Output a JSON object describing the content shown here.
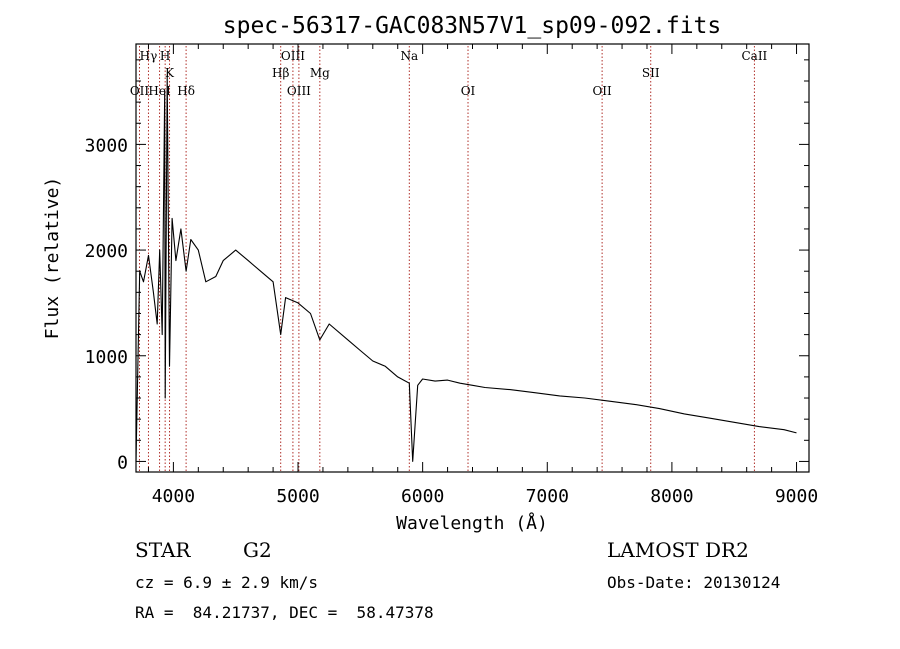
{
  "chart_data": {
    "type": "line",
    "title": "spec-56317-GAC083N57V1_sp09-092.fits",
    "xlabel": "Wavelength (Å)",
    "ylabel": "Flux (relative)",
    "xlim": [
      3700,
      9100
    ],
    "ylim": [
      -100,
      3950
    ],
    "x_ticks": [
      4000,
      5000,
      6000,
      7000,
      8000,
      9000
    ],
    "y_ticks": [
      0,
      1000,
      2000,
      3000
    ],
    "grid": false,
    "line_color": "#000000",
    "marker_color": "#b0302a",
    "lines": [
      {
        "label": "Hγ",
        "x": 3800,
        "row": 0
      },
      {
        "label": "H",
        "x": 3934,
        "row": 0
      },
      {
        "label": "OII",
        "x": 3728,
        "row": 2
      },
      {
        "label": "HeI",
        "x": 3889,
        "row": 2
      },
      {
        "label": "K",
        "x": 3969,
        "row": 1
      },
      {
        "label": "Hδ",
        "x": 4102,
        "row": 2
      },
      {
        "label": "OIII",
        "x": 4959,
        "row": 0
      },
      {
        "label": "Hβ",
        "x": 4861,
        "row": 1
      },
      {
        "label": "OIII",
        "x": 5007,
        "row": 2
      },
      {
        "label": "Mg",
        "x": 5175,
        "row": 1
      },
      {
        "label": "Na",
        "x": 5893,
        "row": 0
      },
      {
        "label": "OI",
        "x": 6364,
        "row": 2
      },
      {
        "label": "OII",
        "x": 7440,
        "row": 2
      },
      {
        "label": "SII",
        "x": 7830,
        "row": 1
      },
      {
        "label": "CaII",
        "x": 8662,
        "row": 0
      }
    ],
    "series": [
      {
        "x": [
          3700,
          3730,
          3760,
          3800,
          3840,
          3870,
          3890,
          3910,
          3930,
          3934,
          3950,
          3969,
          3990,
          4020,
          4060,
          4102,
          4140,
          4200,
          4260,
          4340,
          4400,
          4500,
          4600,
          4700,
          4800,
          4861,
          4900,
          5000,
          5100,
          5175,
          5250,
          5400,
          5500,
          5600,
          5700,
          5800,
          5893,
          5920,
          5960,
          6000,
          6100,
          6200,
          6300,
          6400,
          6500,
          6700,
          6900,
          7100,
          7300,
          7500,
          7700,
          7900,
          8100,
          8300,
          8500,
          8700,
          8900,
          9000
        ],
        "y": [
          0,
          1800,
          1700,
          1950,
          1600,
          1300,
          2000,
          1200,
          3500,
          600,
          3650,
          900,
          2300,
          1900,
          2200,
          1800,
          2100,
          2000,
          1700,
          1750,
          1900,
          2000,
          1900,
          1800,
          1700,
          1200,
          1550,
          1500,
          1400,
          1150,
          1300,
          1150,
          1050,
          950,
          900,
          800,
          740,
          0,
          720,
          780,
          760,
          770,
          740,
          720,
          700,
          680,
          650,
          620,
          600,
          570,
          540,
          500,
          450,
          410,
          370,
          330,
          300,
          270
        ]
      }
    ]
  },
  "info": {
    "object_class": "STAR",
    "subclass": "G2",
    "survey": "LAMOST DR2",
    "cz": "cz = 6.9 ± 2.9 km/s",
    "obs_date": "Obs-Date: 20130124",
    "coords": "RA =  84.21737, DEC =  58.47378"
  }
}
